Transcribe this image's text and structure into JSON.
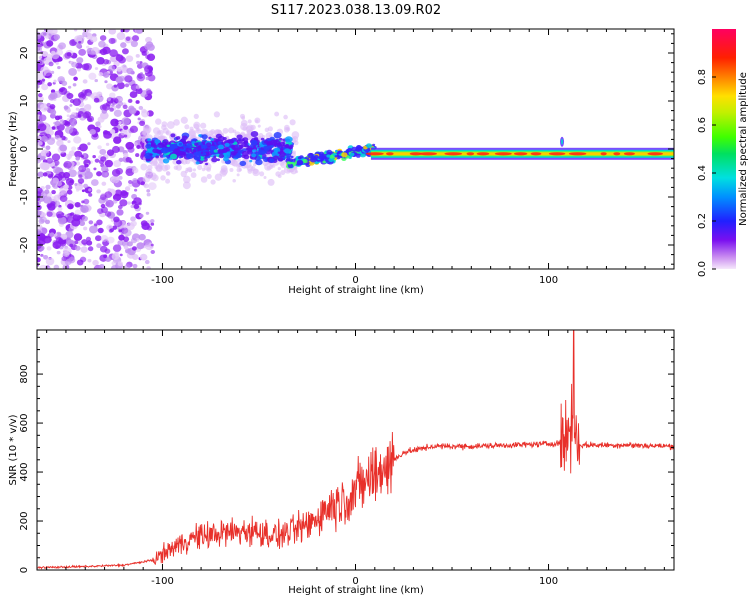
{
  "title": "S117.2023.038.13.09.R02",
  "chart_data": [
    {
      "type": "heatmap",
      "xlabel": "Height of straight line (km)",
      "ylabel": "Frequency (Hz)",
      "xlim": [
        -165,
        165
      ],
      "ylim": [
        -25,
        25
      ],
      "xticks": [
        -100,
        0,
        100
      ],
      "yticks": [
        -20,
        -10,
        0,
        10,
        20
      ],
      "colorbar": {
        "label": "Normalized spectral amplitude",
        "range": [
          0,
          1
        ],
        "ticks": [
          0.0,
          0.2,
          0.4,
          0.6,
          0.8
        ]
      },
      "features": [
        {
          "x": [
            -165,
            -110
          ],
          "freq_spread": [
            -25,
            25
          ],
          "amplitude": 0.05
        },
        {
          "x": [
            -110,
            -35
          ],
          "freq_spread": [
            -4,
            4
          ],
          "amplitude": 0.2
        },
        {
          "x": [
            -35,
            10
          ],
          "freq_from": -3,
          "freq_to": 0,
          "amplitude": 0.5
        },
        {
          "x": [
            10,
            165
          ],
          "freq_center": -1,
          "amplitude": 0.9
        }
      ]
    },
    {
      "type": "line",
      "xlabel": "Height of straight line (km)",
      "ylabel": "SNR (10 * v/v)",
      "xlim": [
        -165,
        165
      ],
      "ylim": [
        0,
        980
      ],
      "xticks": [
        -100,
        0,
        100
      ],
      "yticks": [
        0,
        200,
        400,
        600,
        800
      ],
      "color": "#e8302a",
      "series": [
        {
          "x": [
            -165,
            -140,
            -120,
            -105,
            -95,
            -85,
            -70,
            -55,
            -40,
            -25,
            -15,
            -5,
            5,
            15,
            25,
            40,
            60,
            80,
            100,
            108,
            112,
            116,
            120,
            140,
            165
          ],
          "y": [
            10,
            14,
            20,
            40,
            90,
            130,
            150,
            160,
            140,
            180,
            250,
            290,
            360,
            420,
            480,
            505,
            505,
            510,
            515,
            520,
            600,
            510,
            510,
            510,
            505
          ]
        }
      ]
    }
  ]
}
